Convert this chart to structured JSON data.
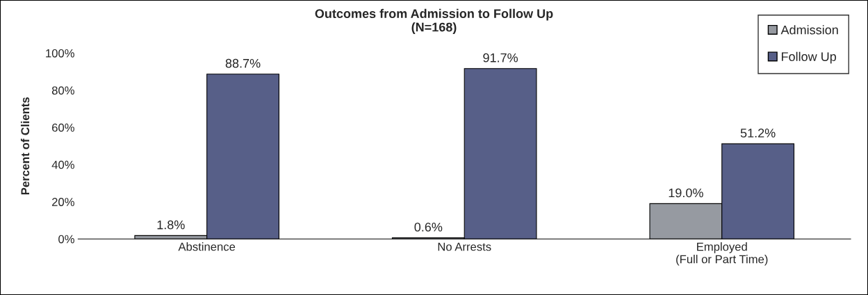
{
  "chart_data": {
    "type": "bar",
    "title": "Outcomes from Admission to Follow Up\n(N=168)",
    "ylabel": "Percent of Clients",
    "categories": [
      "Abstinence",
      "No Arrests",
      "Employed\n(Full or Part Time)"
    ],
    "series": [
      {
        "name": "Admission",
        "color": "#969aa1",
        "values": [
          1.8,
          0.6,
          19.0
        ],
        "value_labels": [
          "1.8%",
          "0.6%",
          "19.0%"
        ]
      },
      {
        "name": "Follow Up",
        "color": "#575f88",
        "values": [
          88.7,
          91.7,
          51.2
        ],
        "value_labels": [
          "88.7%",
          "91.7%",
          "51.2%"
        ]
      }
    ],
    "ylim": [
      0,
      100
    ],
    "yticks": [
      {
        "value": 0,
        "label": "0%"
      },
      {
        "value": 20,
        "label": "20%"
      },
      {
        "value": 40,
        "label": "40%"
      },
      {
        "value": 60,
        "label": "60%"
      },
      {
        "value": 80,
        "label": "80%"
      },
      {
        "value": 100,
        "label": "100%"
      }
    ],
    "grid": false,
    "legend": "top right"
  }
}
